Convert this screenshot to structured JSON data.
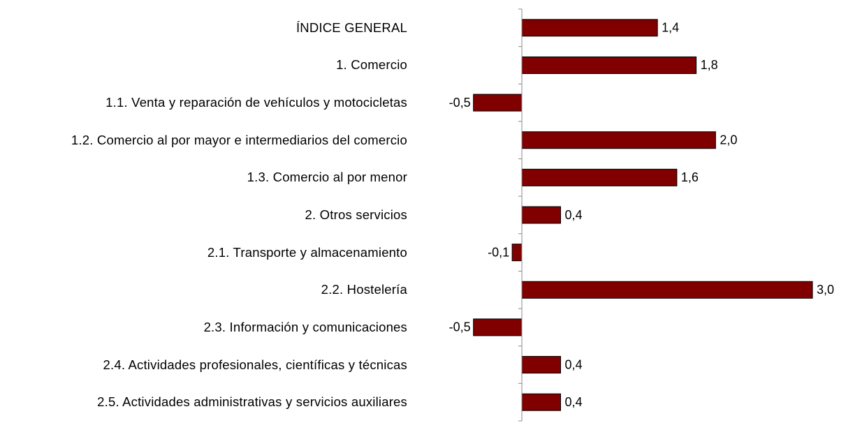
{
  "chart_data": {
    "type": "barh",
    "categories": [
      "ÍNDICE GENERAL",
      "1. Comercio",
      "1.1. Venta y reparación de vehículos y motocicletas",
      "1.2. Comercio al por mayor e intermediarios del comercio",
      "1.3. Comercio al por menor",
      "2. Otros servicios",
      "2.1. Transporte y almacenamiento",
      "2.2. Hostelería",
      "2.3. Información y comunicaciones",
      "2.4. Actividades profesionales, científicas y técnicas",
      "2.5. Actividades administrativas y servicios auxiliares"
    ],
    "values": [
      1.4,
      1.8,
      -0.5,
      2.0,
      1.6,
      0.4,
      -0.1,
      3.0,
      -0.5,
      0.4,
      0.4
    ],
    "value_labels": [
      "1,4",
      "1,8",
      "-0,5",
      "2,0",
      "1,6",
      "0,4",
      "-0,1",
      "3,0",
      "-0,5",
      "0,4",
      "0,4"
    ],
    "color": "#800000"
  }
}
